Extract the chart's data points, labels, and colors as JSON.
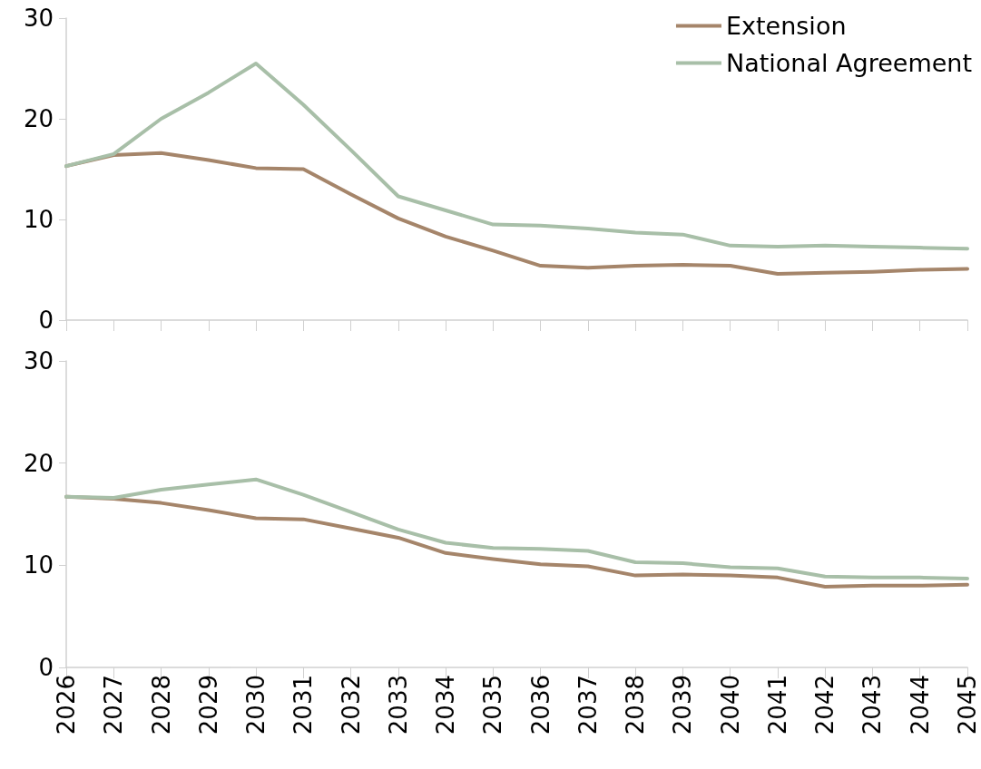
{
  "chart_data": [
    {
      "type": "line",
      "categories": [
        "2026",
        "2027",
        "2028",
        "2029",
        "2030",
        "2031",
        "2032",
        "2033",
        "2034",
        "2035",
        "2036",
        "2037",
        "2038",
        "2039",
        "2040",
        "2041",
        "2042",
        "2043",
        "2044",
        "2045"
      ],
      "series": [
        {
          "name": "Extension",
          "color": "#a5856a",
          "values": [
            15.3,
            16.4,
            16.6,
            15.9,
            15.1,
            15.0,
            12.5,
            10.1,
            8.3,
            6.9,
            5.4,
            5.2,
            5.4,
            5.5,
            5.4,
            4.6,
            4.7,
            4.8,
            5.0,
            5.1
          ]
        },
        {
          "name": "National Agreement",
          "color": "#a8bfa8",
          "values": [
            15.3,
            16.5,
            20.0,
            22.6,
            25.5,
            21.4,
            16.9,
            12.3,
            10.9,
            9.5,
            9.4,
            9.1,
            8.7,
            8.5,
            7.4,
            7.3,
            7.4,
            7.3,
            7.2,
            7.1
          ]
        }
      ],
      "ylim": [
        0,
        30
      ],
      "yticks": [
        0,
        10,
        20,
        30
      ],
      "grid": false,
      "legend": "top right",
      "tick_labels": "y",
      "marker": "none",
      "line_style": "solid"
    },
    {
      "type": "line",
      "categories": [
        "2026",
        "2027",
        "2028",
        "2029",
        "2030",
        "2031",
        "2032",
        "2033",
        "2034",
        "2035",
        "2036",
        "2037",
        "2038",
        "2039",
        "2040",
        "2041",
        "2042",
        "2043",
        "2044",
        "2045"
      ],
      "series": [
        {
          "color": "#a5856a",
          "values": [
            16.7,
            16.5,
            16.1,
            15.4,
            14.6,
            14.5,
            13.6,
            12.7,
            11.2,
            10.6,
            10.1,
            9.9,
            9.0,
            9.1,
            9.0,
            8.8,
            7.9,
            8.0,
            8.0,
            8.1
          ]
        },
        {
          "color": "#a8bfa8",
          "values": [
            16.7,
            16.6,
            17.4,
            17.9,
            18.4,
            16.9,
            15.2,
            13.5,
            12.2,
            11.7,
            11.6,
            11.4,
            10.3,
            10.2,
            9.8,
            9.7,
            8.9,
            8.8,
            8.8,
            8.7
          ]
        }
      ],
      "ylim": [
        0,
        30
      ],
      "yticks": [
        0,
        10,
        20,
        30
      ],
      "grid": false,
      "legend": false,
      "marker": "none",
      "line_style": "solid"
    }
  ]
}
